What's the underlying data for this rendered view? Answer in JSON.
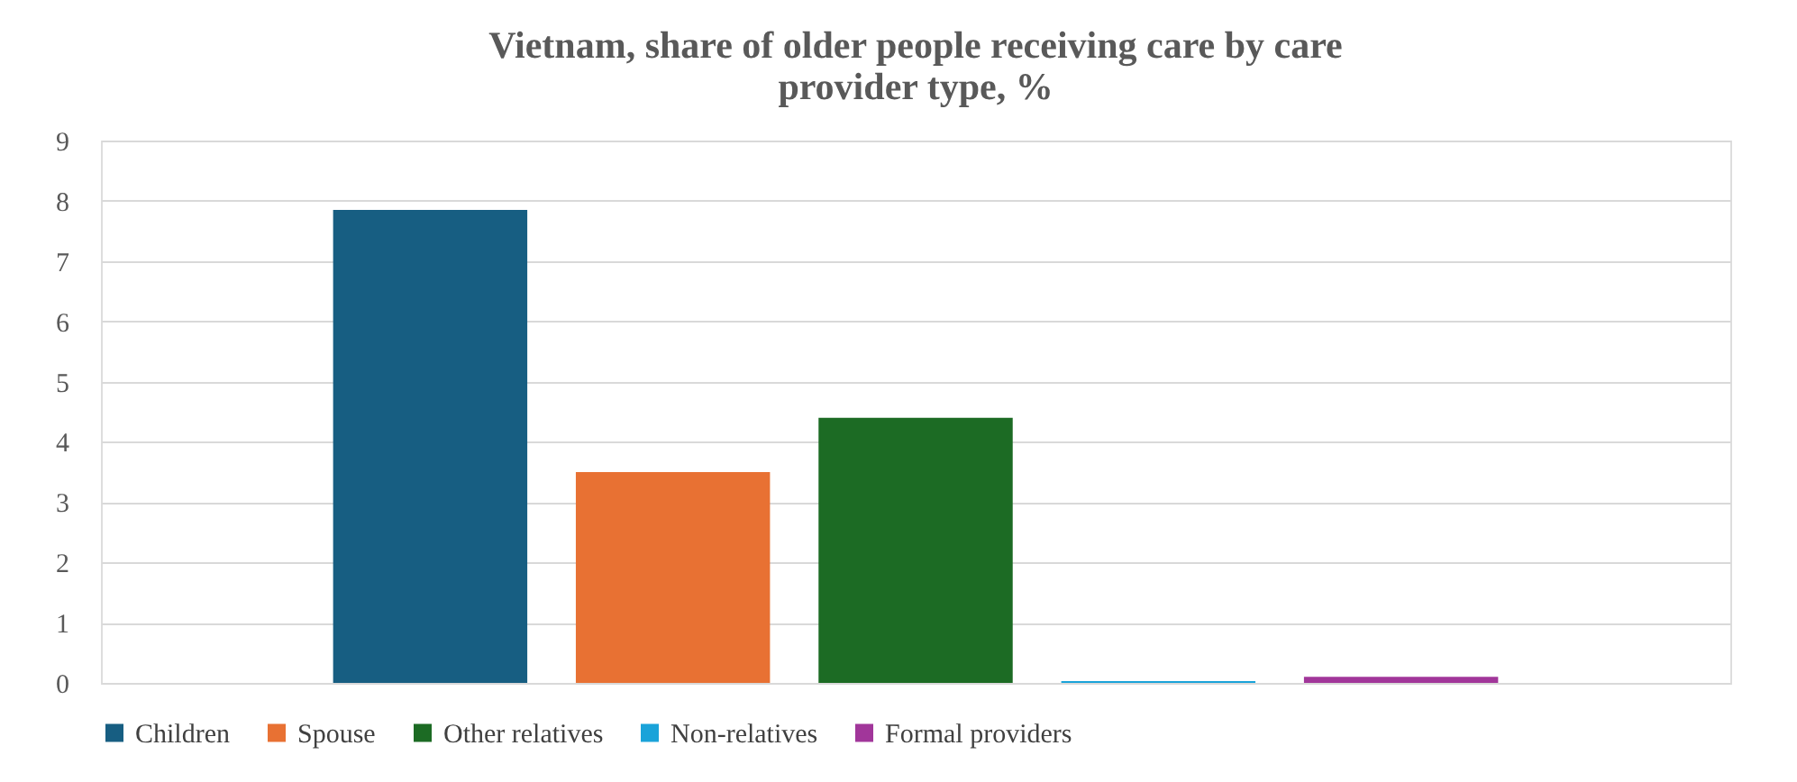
{
  "chart_data": {
    "type": "bar",
    "title": "Vietnam, share of older people receiving care by care provider type, %",
    "categories": [
      null
    ],
    "series": [
      {
        "name": "Children",
        "color": "#175e82",
        "values": [
          7.85
        ]
      },
      {
        "name": "Spouse",
        "color": "#e87133",
        "values": [
          3.5
        ]
      },
      {
        "name": "Other relatives",
        "color": "#1c6b24",
        "values": [
          4.4
        ]
      },
      {
        "name": "Non-relatives",
        "color": "#1aa3d9",
        "values": [
          0.03
        ]
      },
      {
        "name": "Formal providers",
        "color": "#a1369a",
        "values": [
          0.1
        ]
      }
    ],
    "ylim": [
      0,
      9
    ],
    "yticks": [
      0,
      1,
      2,
      3,
      4,
      5,
      6,
      7,
      8,
      9
    ],
    "grid": "y",
    "legend": "bottom"
  }
}
